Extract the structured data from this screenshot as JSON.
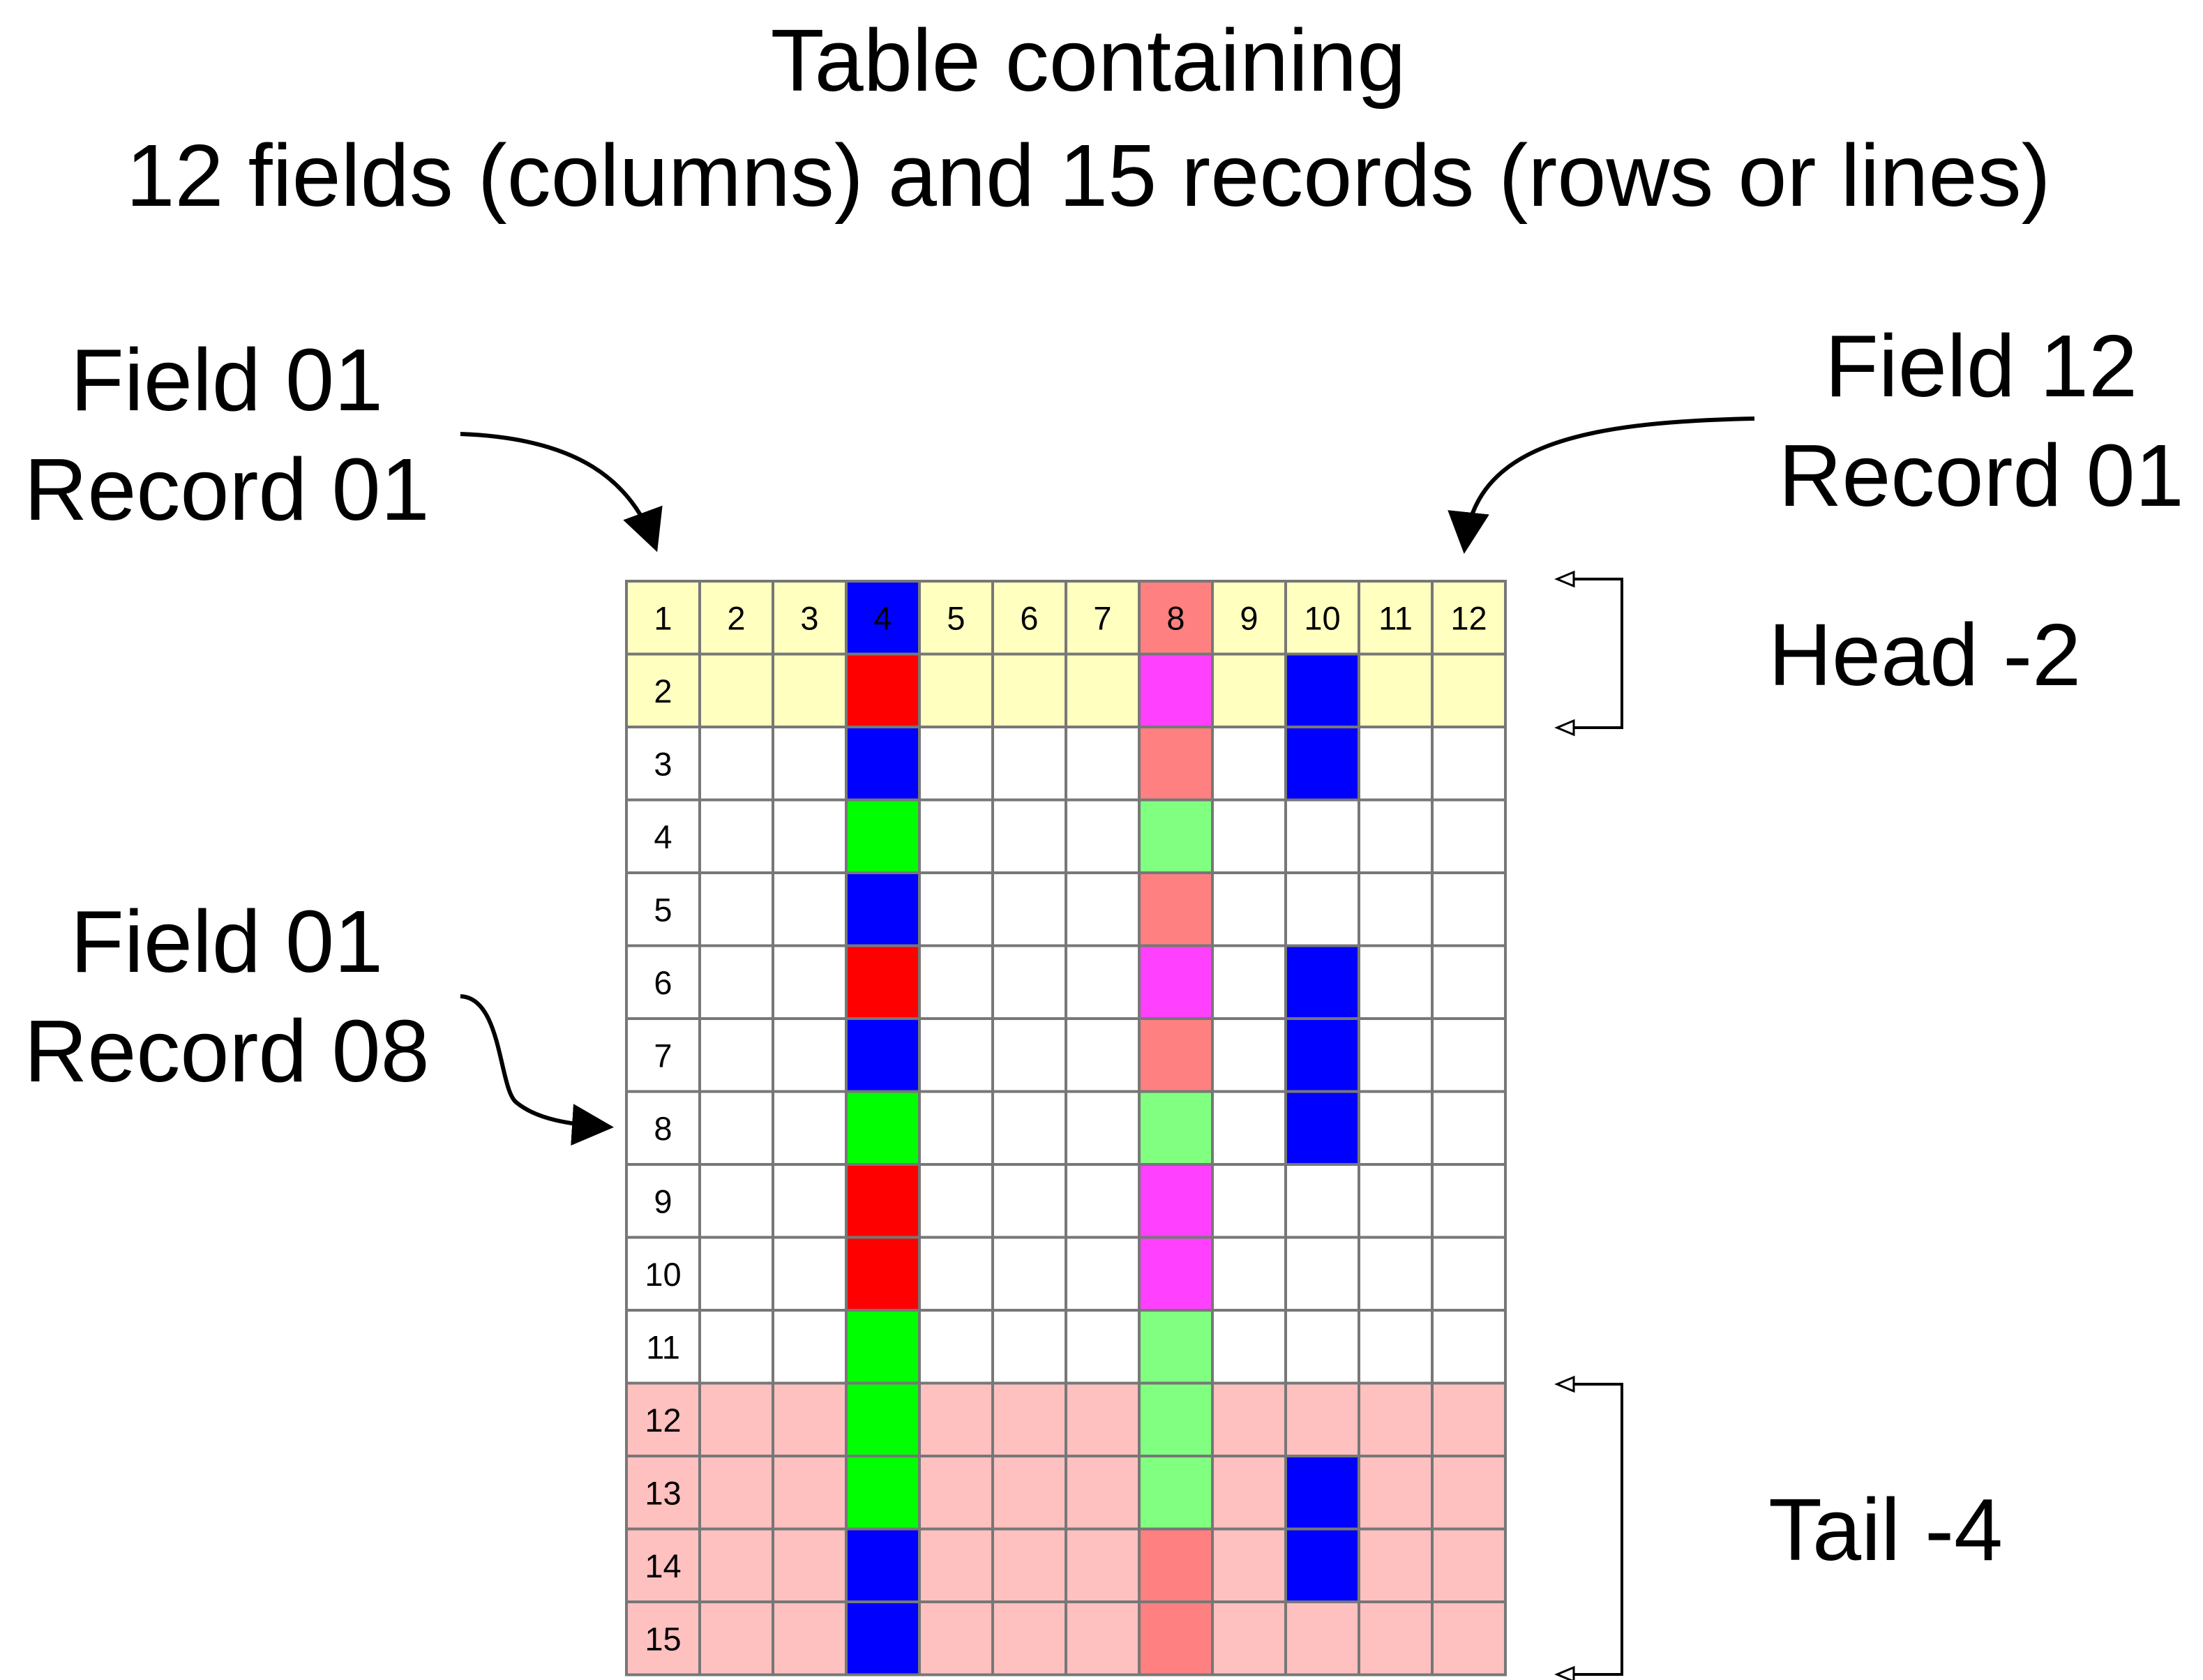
{
  "title": {
    "line1": "Table containing",
    "line2": "12 fields (columns) and 15 records (rows or lines)"
  },
  "callouts": {
    "field01_record01": {
      "line1": "Field 01",
      "line2": "Record 01"
    },
    "field12_record01": {
      "line1": "Field 12",
      "line2": "Record 01"
    },
    "field01_record08": {
      "line1": "Field 01",
      "line2": "Record 08"
    }
  },
  "brackets": {
    "head": {
      "label": "Head -2",
      "rows": 2
    },
    "tail": {
      "label": "Tail -4",
      "rows": 4
    }
  },
  "table": {
    "fields": 12,
    "records": 15,
    "colors": {
      "white": "#ffffff",
      "head": "#ffffc0",
      "tail": "#ffc0c0",
      "blue": "#0000ff",
      "red": "#ff0000",
      "green": "#00ff00",
      "magenta": "#ff40ff",
      "salmon": "#ff8080",
      "lightgreen": "#80ff80"
    },
    "header_labels": [
      "1",
      "2",
      "3",
      "4",
      "5",
      "6",
      "7",
      "8",
      "9",
      "10",
      "11",
      "12"
    ],
    "header_label_colors": {
      "4": "#ffffff"
    },
    "row_labels": [
      "2",
      "3",
      "4",
      "5",
      "6",
      "7",
      "8",
      "9",
      "10",
      "11",
      "12",
      "13",
      "14",
      "15"
    ],
    "row_backgrounds": [
      "head",
      "head",
      "white",
      "white",
      "white",
      "white",
      "white",
      "white",
      "white",
      "white",
      "white",
      "tail",
      "tail",
      "tail",
      "tail"
    ],
    "column4": [
      "blue",
      "red",
      "blue",
      "green",
      "blue",
      "red",
      "blue",
      "green",
      "red",
      "red",
      "green",
      "green",
      "green",
      "blue",
      "blue"
    ],
    "column8": [
      "salmon",
      "magenta",
      "salmon",
      "lightgreen",
      "salmon",
      "magenta",
      "salmon",
      "lightgreen",
      "magenta",
      "magenta",
      "lightgreen",
      "lightgreen",
      "lightgreen",
      "salmon",
      "salmon"
    ],
    "column10": [
      "head",
      "blue",
      "blue",
      "white",
      "white",
      "blue",
      "blue",
      "blue",
      "white",
      "white",
      "white",
      "tail",
      "blue",
      "blue",
      "tail"
    ]
  }
}
